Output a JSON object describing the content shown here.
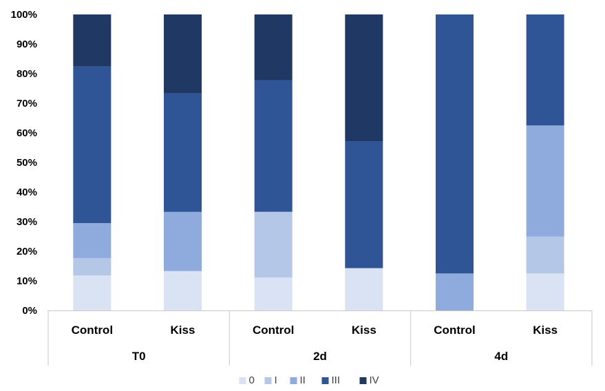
{
  "chart_data": {
    "type": "bar",
    "stacked": true,
    "percent": true,
    "groups": [
      {
        "label": "T0",
        "categories": [
          "Control",
          "Kiss"
        ]
      },
      {
        "label": "2d",
        "categories": [
          "Control",
          "Kiss"
        ]
      },
      {
        "label": "4d",
        "categories": [
          "Control",
          "Kiss"
        ]
      }
    ],
    "categories": [
      "Control",
      "Kiss",
      "Control",
      "Kiss",
      "Control",
      "Kiss"
    ],
    "series": [
      {
        "name": "0",
        "color": "#dae3f3",
        "values": [
          11.8,
          13.3,
          11.1,
          14.3,
          0,
          12.5
        ]
      },
      {
        "name": "I",
        "color": "#b4c7e7",
        "values": [
          5.9,
          0,
          22.2,
          0,
          0,
          12.5
        ]
      },
      {
        "name": "II",
        "color": "#8faadc",
        "values": [
          11.8,
          20.0,
          0,
          0,
          12.5,
          37.5
        ]
      },
      {
        "name": "III",
        "color": "#2f5597",
        "values": [
          52.9,
          40.0,
          44.4,
          42.9,
          87.5,
          37.5
        ]
      },
      {
        "name": "IV",
        "color": "#1f3864",
        "values": [
          17.6,
          26.7,
          22.2,
          42.8,
          0,
          0
        ]
      }
    ],
    "y_ticks": [
      "0%",
      "10%",
      "20%",
      "30%",
      "40%",
      "50%",
      "60%",
      "70%",
      "80%",
      "90%",
      "100%"
    ],
    "ylim": [
      0,
      100
    ],
    "legend_position": "bottom",
    "grid": false
  }
}
